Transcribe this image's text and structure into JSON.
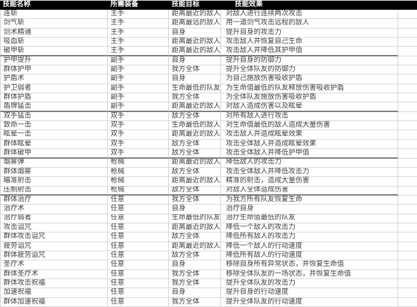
{
  "colors": {
    "header_bg": "#000000",
    "header_text": "#ffffff",
    "gridline": "#d4d4d4",
    "group_separator": "#7d7d7d",
    "cell_text": "#3f3f3f",
    "background": "#ffffff"
  },
  "header": {
    "columns": [
      "技能名称",
      "所需装备",
      "技能目标",
      "技能效果"
    ]
  },
  "rows": [
    {
      "name": "连斩",
      "equip": "主手",
      "target": "距离最近的敌人",
      "effect": "对敌人进行连续两次攻击",
      "section_break_after": false
    },
    {
      "name": "剑气斩",
      "equip": "主手",
      "target": "距离最远的敌人",
      "effect": "用一道剑气攻击远程的敌人",
      "section_break_after": false
    },
    {
      "name": "剑术精通",
      "equip": "主手",
      "target": "自身",
      "effect": "提升自身的攻击力",
      "section_break_after": false
    },
    {
      "name": "吸血斩",
      "equip": "主手",
      "target": "距离最近的敌人",
      "effect": "攻击敌人并恢复自己生命",
      "section_break_after": false
    },
    {
      "name": "破甲斩",
      "equip": "主手",
      "target": "距离最近的敌人",
      "effect": "攻击敌人并降低其护甲值",
      "section_break_after": true
    },
    {
      "name": "护甲提升",
      "equip": "副手",
      "target": "自身",
      "effect": "提升自身的防御力",
      "section_break_after": false
    },
    {
      "name": "群体护甲",
      "equip": "副手",
      "target": "我方全体",
      "effect": "提升全体队友的防御力",
      "section_break_after": false
    },
    {
      "name": "护盾术",
      "equip": "副手",
      "target": "自身",
      "effect": "为自己施放伤害吸收护盾",
      "section_break_after": false
    },
    {
      "name": "护卫弱者",
      "equip": "副手",
      "target": "生命最低的队友",
      "effect": "为生命值最低的队友释放伤害吸收护盾",
      "section_break_after": false
    },
    {
      "name": "群体护盾",
      "equip": "副手",
      "target": "我方全体",
      "effect": "为全体队友施放伤害吸收护盾",
      "section_break_after": false
    },
    {
      "name": "盾牌猛击",
      "equip": "副手",
      "target": "距离最近的敌人",
      "effect": "对敌人造成伤害以及眩晕",
      "section_break_after": true
    },
    {
      "name": "双手猛击",
      "equip": "双手",
      "target": "敌方全体",
      "effect": "对所有敌人进行攻击",
      "section_break_after": false
    },
    {
      "name": "致命一击",
      "equip": "双手",
      "target": "生命最低的敌人",
      "effect": "对生命值最低的敌人造成大量伤害",
      "section_break_after": false
    },
    {
      "name": "眩晕一击",
      "equip": "双手",
      "target": "距离最近的敌人",
      "effect": "攻击敌人并造成眩晕效果",
      "section_break_after": false
    },
    {
      "name": "群体眩晕",
      "equip": "双手",
      "target": "敌方全体",
      "effect": "攻击全体敌人并造成眩晕效果",
      "section_break_after": false
    },
    {
      "name": "群体破甲",
      "equip": "双手",
      "target": "敌方全体",
      "effect": "攻击全体敌人并降低护甲值",
      "section_break_after": true
    },
    {
      "name": "烟雾弹",
      "equip": "枪械",
      "target": "距离最近的敌人",
      "effect": "降低敌人的攻击力",
      "section_break_after": false
    },
    {
      "name": "群体烟雾",
      "equip": "枪械",
      "target": "敌方全体",
      "effect": "攻击全体敌人并降低攻击力",
      "section_break_after": false
    },
    {
      "name": "瞄准射击",
      "equip": "枪械",
      "target": "距离最近的敌人",
      "effect": "精准的射击，造成大量伤害",
      "section_break_after": false
    },
    {
      "name": "压制射击",
      "equip": "枪械",
      "target": "敌方全体",
      "effect": "对敌人全体造成伤害",
      "section_break_after": true
    },
    {
      "name": "群体治疗",
      "equip": "任意",
      "target": "我方全体",
      "effect": "为我方所有队友恢复生命",
      "section_break_after": false
    },
    {
      "name": "治疗术",
      "equip": "任意",
      "target": "自身",
      "effect": "治疗自身",
      "section_break_after": false
    },
    {
      "name": "治疗弱者",
      "equip": "任意",
      "target": "生命最低的队友",
      "effect": "治疗生命值最低的队友",
      "section_break_after": false
    },
    {
      "name": "攻击诅咒",
      "equip": "任意",
      "target": "距离最近的敌人",
      "effect": "降低一个敌人的攻击力",
      "section_break_after": false
    },
    {
      "name": "群体攻击诅咒",
      "equip": "任意",
      "target": "敌方全体",
      "effect": "降低所有敌人的攻击力",
      "section_break_after": false
    },
    {
      "name": "疲劳诅咒",
      "equip": "任意",
      "target": "距离最近的敌人",
      "effect": "降低一个敌人的行动速度",
      "section_break_after": false
    },
    {
      "name": "群体疲劳诅咒",
      "equip": "任意",
      "target": "敌方全体",
      "effect": "降低所有敌人的行动速度",
      "section_break_after": false
    },
    {
      "name": "圣疗术",
      "equip": "任意",
      "target": "自身",
      "effect": "移除自身所有异常状态，并恢复生命值",
      "section_break_after": false
    },
    {
      "name": "群体圣疗术",
      "equip": "任意",
      "target": "我方全体",
      "effect": "移除全体队友的一场状态，并恢复生命值",
      "section_break_after": false
    },
    {
      "name": "群体攻击祝福",
      "equip": "任意",
      "target": "我方全体",
      "effect": "提升全体队友的攻击力",
      "section_break_after": false
    },
    {
      "name": "加速祝福",
      "equip": "任意",
      "target": "自身",
      "effect": "提升自身的行动速度",
      "section_break_after": false
    },
    {
      "name": "群体加速祝福",
      "equip": "任意",
      "target": "我方全体",
      "effect": "提升全体队友的行动速度",
      "section_break_after": false
    }
  ]
}
